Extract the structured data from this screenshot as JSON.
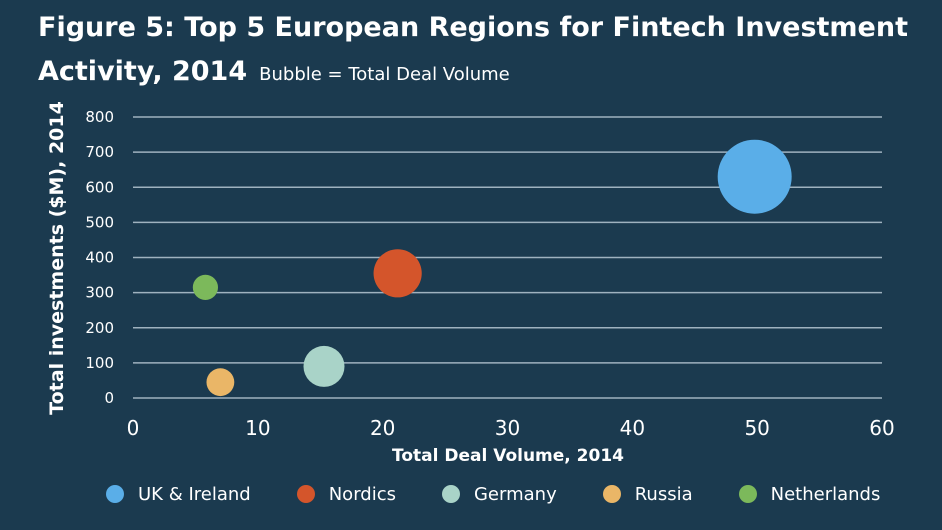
{
  "header": {
    "title": "Figure 5: Top 5 European Regions for Fintech Investment Activity, 2014",
    "subtitle": "Bubble = Total Deal Volume"
  },
  "chart_data": {
    "type": "scatter",
    "title": "Figure 5: Top 5 European Regions for Fintech Investment Activity, 2014",
    "subtitle": "Bubble = Total Deal Volume",
    "xlabel": "Total Deal Volume, 2014",
    "ylabel": "Total investments ($M), 2014",
    "xlim": [
      0,
      60
    ],
    "ylim": [
      0,
      800
    ],
    "xticks": [
      "0",
      "10",
      "20",
      "30",
      "40",
      "50",
      "60"
    ],
    "yticks": [
      "0",
      "100",
      "200",
      "300",
      "400",
      "500",
      "600",
      "700",
      "800"
    ],
    "grid": "horizontal",
    "legend_position": "bottom",
    "series": [
      {
        "name": "UK & Ireland",
        "x": 49.8,
        "y": 630,
        "size": 49.8,
        "color": "#5aaee8"
      },
      {
        "name": "Nordics",
        "x": 21.2,
        "y": 355,
        "size": 21.2,
        "color": "#d4552b"
      },
      {
        "name": "Germany",
        "x": 15.3,
        "y": 90,
        "size": 15.3,
        "color": "#a9d3c8"
      },
      {
        "name": "Russia",
        "x": 7.0,
        "y": 45,
        "size": 7.0,
        "color": "#eab667"
      },
      {
        "name": "Netherlands",
        "x": 5.8,
        "y": 315,
        "size": 5.8,
        "color": "#7cb95b"
      }
    ]
  }
}
